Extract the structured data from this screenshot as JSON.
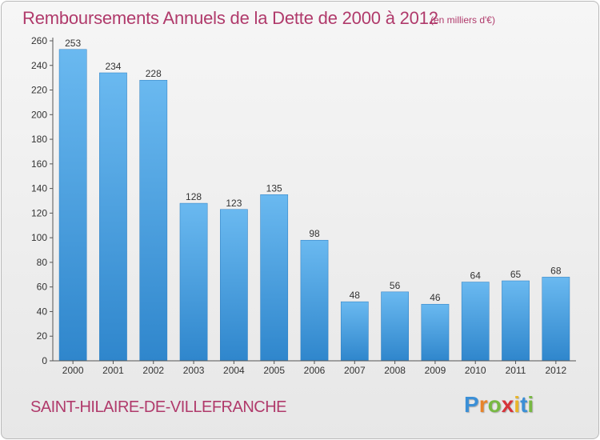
{
  "header": {
    "title": "Remboursements Annuels de la Dette de 2000 à 2012",
    "unit": "(en milliers d'€)"
  },
  "footer": {
    "city": "SAINT-HILAIRE-DE-VILLEFRANCHE",
    "brand_letters": [
      "P",
      "r",
      "o",
      "x",
      "i",
      "t",
      "i"
    ],
    "brand_colors": [
      "#3b8fd6",
      "#e8842a",
      "#78b943",
      "#d6343a",
      "#e8b52a",
      "#3b8fd6",
      "#78b943"
    ]
  },
  "colors": {
    "text_accent": "#b03a6b",
    "bar_light": "#6ab9f0",
    "bar_dark": "#2f86cc"
  },
  "chart_data": {
    "type": "bar",
    "categories": [
      "2000",
      "2001",
      "2002",
      "2003",
      "2004",
      "2005",
      "2006",
      "2007",
      "2008",
      "2009",
      "2010",
      "2011",
      "2012"
    ],
    "values": [
      253,
      234,
      228,
      128,
      123,
      135,
      98,
      48,
      56,
      46,
      64,
      65,
      68
    ],
    "title": "Remboursements Annuels de la Dette de 2000 à 2012",
    "subtitle": "(en milliers d'€)",
    "xlabel": "",
    "ylabel": "",
    "ylim": [
      0,
      260
    ],
    "yticks": [
      0,
      20,
      40,
      60,
      80,
      100,
      120,
      140,
      160,
      180,
      200,
      220,
      240,
      260
    ],
    "grid": false,
    "data_labels": true
  }
}
